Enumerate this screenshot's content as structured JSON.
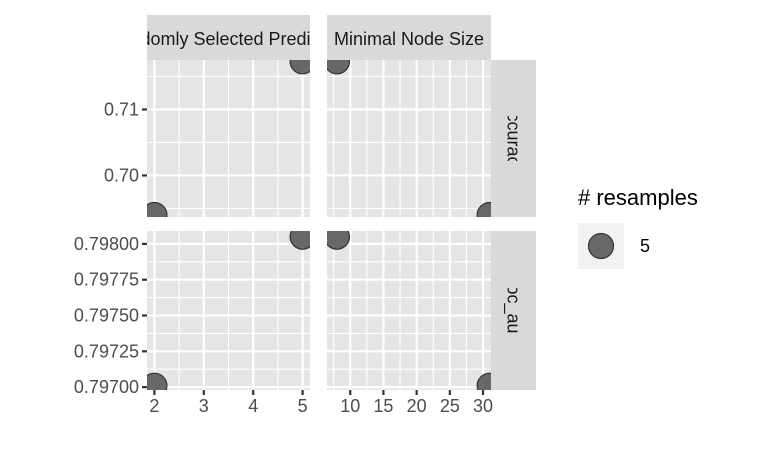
{
  "chart_data": {
    "type": "scatter",
    "facet_cols": [
      {
        "label": "Randomly Selected Predictors",
        "xlim": [
          1.85,
          5.15
        ],
        "x_ticks": [
          2,
          3,
          4,
          5
        ]
      },
      {
        "label": "Minimal Node Size",
        "xlim": [
          6.5,
          31.2
        ],
        "x_ticks": [
          10,
          15,
          20,
          25,
          30
        ]
      }
    ],
    "facet_rows": [
      {
        "label": "accuracy",
        "ylim": [
          0.6937,
          0.7175
        ],
        "y_ticks": [
          "0.70",
          "0.71"
        ]
      },
      {
        "label": "roc_auc",
        "ylim": [
          0.79698,
          0.79809
        ],
        "y_ticks": [
          "0.79700",
          "0.79725",
          "0.79750",
          "0.79775",
          "0.79800"
        ]
      }
    ],
    "points": [
      {
        "panel_col": 0,
        "panel_row": 0,
        "x": 2,
        "y": 0.694
      },
      {
        "panel_col": 0,
        "panel_row": 0,
        "x": 5,
        "y": 0.7173
      },
      {
        "panel_col": 1,
        "panel_row": 0,
        "x": 8,
        "y": 0.7173
      },
      {
        "panel_col": 1,
        "panel_row": 0,
        "x": 31,
        "y": 0.694
      },
      {
        "panel_col": 0,
        "panel_row": 1,
        "x": 2,
        "y": 0.79701
      },
      {
        "panel_col": 0,
        "panel_row": 1,
        "x": 5,
        "y": 0.79805
      },
      {
        "panel_col": 1,
        "panel_row": 1,
        "x": 8,
        "y": 0.79805
      },
      {
        "panel_col": 1,
        "panel_row": 1,
        "x": 31,
        "y": 0.79701
      }
    ],
    "legend": {
      "title": "# resamples",
      "entries": [
        "5"
      ],
      "position": "right"
    },
    "grid": true,
    "colors": {
      "panel_bg": "#e5e5e5",
      "strip_bg": "#d9d9d9",
      "point_fill": "#595959",
      "point_stroke": "#333333"
    }
  }
}
